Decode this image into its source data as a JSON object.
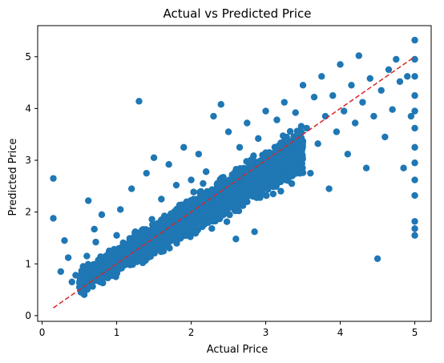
{
  "chart_data": {
    "type": "scatter",
    "title": "Actual vs Predicted Price",
    "xlabel": "Actual Price",
    "ylabel": "Predicted Price",
    "xlim": [
      -0.06,
      5.22
    ],
    "ylim": [
      -0.11,
      5.6
    ],
    "x_ticks": [
      0,
      1,
      2,
      3,
      4,
      5
    ],
    "y_ticks": [
      0,
      1,
      2,
      3,
      4,
      5
    ],
    "x_tick_labels": [
      "0",
      "1",
      "2",
      "3",
      "4",
      "5"
    ],
    "y_tick_labels": [
      "0",
      "1",
      "2",
      "3",
      "4",
      "5"
    ],
    "grid": false,
    "series": [
      {
        "color": "#1f77b4",
        "marker": "circle",
        "points": [
          [
            0.15,
            2.65
          ],
          [
            0.15,
            1.88
          ],
          [
            0.25,
            0.85
          ],
          [
            0.3,
            1.45
          ],
          [
            0.35,
            1.12
          ],
          [
            0.4,
            0.65
          ],
          [
            0.45,
            0.78
          ],
          [
            0.5,
            0.55
          ],
          [
            0.55,
            0.95
          ],
          [
            0.6,
            1.15
          ],
          [
            0.62,
            2.22
          ],
          [
            0.65,
            0.62
          ],
          [
            0.7,
            1.67
          ],
          [
            0.72,
            1.42
          ],
          [
            0.75,
            0.72
          ],
          [
            0.8,
            1.95
          ],
          [
            0.85,
            1.05
          ],
          [
            0.9,
            1.25
          ],
          [
            0.95,
            0.88
          ],
          [
            1.0,
            1.55
          ],
          [
            1.05,
            2.05
          ],
          [
            1.1,
            1.12
          ],
          [
            1.15,
            1.35
          ],
          [
            1.2,
            2.45
          ],
          [
            1.25,
            1.62
          ],
          [
            1.3,
            4.14
          ],
          [
            1.35,
            1.02
          ],
          [
            1.4,
            2.75
          ],
          [
            1.45,
            1.38
          ],
          [
            1.5,
            3.05
          ],
          [
            1.55,
            1.78
          ],
          [
            1.6,
            2.25
          ],
          [
            1.65,
            1.48
          ],
          [
            1.7,
            2.92
          ],
          [
            1.75,
            1.95
          ],
          [
            1.8,
            2.52
          ],
          [
            1.85,
            1.65
          ],
          [
            1.9,
            3.25
          ],
          [
            1.95,
            2.12
          ],
          [
            2.0,
            2.62
          ],
          [
            2.05,
            1.72
          ],
          [
            2.1,
            3.12
          ],
          [
            2.15,
            2.32
          ],
          [
            2.2,
            2.78
          ],
          [
            2.25,
            1.85
          ],
          [
            2.3,
            3.85
          ],
          [
            2.35,
            2.42
          ],
          [
            2.4,
            4.08
          ],
          [
            2.45,
            2.15
          ],
          [
            2.5,
            3.55
          ],
          [
            2.55,
            2.72
          ],
          [
            2.6,
            1.48
          ],
          [
            2.65,
            3.25
          ],
          [
            2.7,
            2.45
          ],
          [
            2.75,
            3.72
          ],
          [
            2.8,
            2.95
          ],
          [
            2.85,
            1.62
          ],
          [
            2.9,
            3.42
          ],
          [
            2.95,
            2.65
          ],
          [
            3.0,
            3.95
          ],
          [
            3.05,
            3.15
          ],
          [
            3.1,
            2.35
          ],
          [
            3.15,
            3.78
          ],
          [
            3.2,
            2.88
          ],
          [
            3.25,
            4.12
          ],
          [
            3.3,
            3.35
          ],
          [
            3.35,
            2.55
          ],
          [
            3.4,
            3.92
          ],
          [
            3.45,
            3.05
          ],
          [
            3.5,
            4.45
          ],
          [
            3.55,
            3.62
          ],
          [
            3.6,
            2.75
          ],
          [
            3.65,
            4.22
          ],
          [
            3.7,
            3.32
          ],
          [
            3.75,
            4.62
          ],
          [
            3.8,
            3.85
          ],
          [
            3.85,
            2.45
          ],
          [
            3.9,
            4.25
          ],
          [
            3.95,
            3.55
          ],
          [
            4.0,
            4.85
          ],
          [
            4.05,
            3.95
          ],
          [
            4.1,
            3.12
          ],
          [
            4.15,
            4.45
          ],
          [
            4.2,
            3.72
          ],
          [
            4.25,
            5.02
          ],
          [
            4.3,
            4.12
          ],
          [
            4.35,
            2.85
          ],
          [
            4.4,
            4.58
          ],
          [
            4.45,
            3.85
          ],
          [
            4.5,
            1.1
          ],
          [
            4.55,
            4.35
          ],
          [
            4.6,
            3.45
          ],
          [
            4.65,
            4.75
          ],
          [
            4.7,
            3.98
          ],
          [
            4.75,
            4.95
          ],
          [
            4.8,
            4.52
          ],
          [
            4.85,
            2.85
          ],
          [
            4.9,
            4.62
          ],
          [
            4.95,
            3.85
          ],
          [
            5.0,
            5.32
          ],
          [
            5.0,
            4.95
          ],
          [
            5.0,
            4.62
          ],
          [
            5.0,
            4.25
          ],
          [
            5.0,
            3.95
          ],
          [
            5.0,
            3.62
          ],
          [
            5.0,
            3.25
          ],
          [
            5.0,
            2.95
          ],
          [
            5.0,
            2.62
          ],
          [
            5.0,
            2.32
          ],
          [
            5.0,
            1.82
          ],
          [
            5.0,
            1.68
          ],
          [
            5.0,
            1.55
          ]
        ]
      }
    ],
    "reference_line": {
      "color": "#d62728",
      "style": "dashed",
      "x": [
        0.15,
        5.0
      ],
      "y": [
        0.15,
        5.0
      ]
    }
  }
}
